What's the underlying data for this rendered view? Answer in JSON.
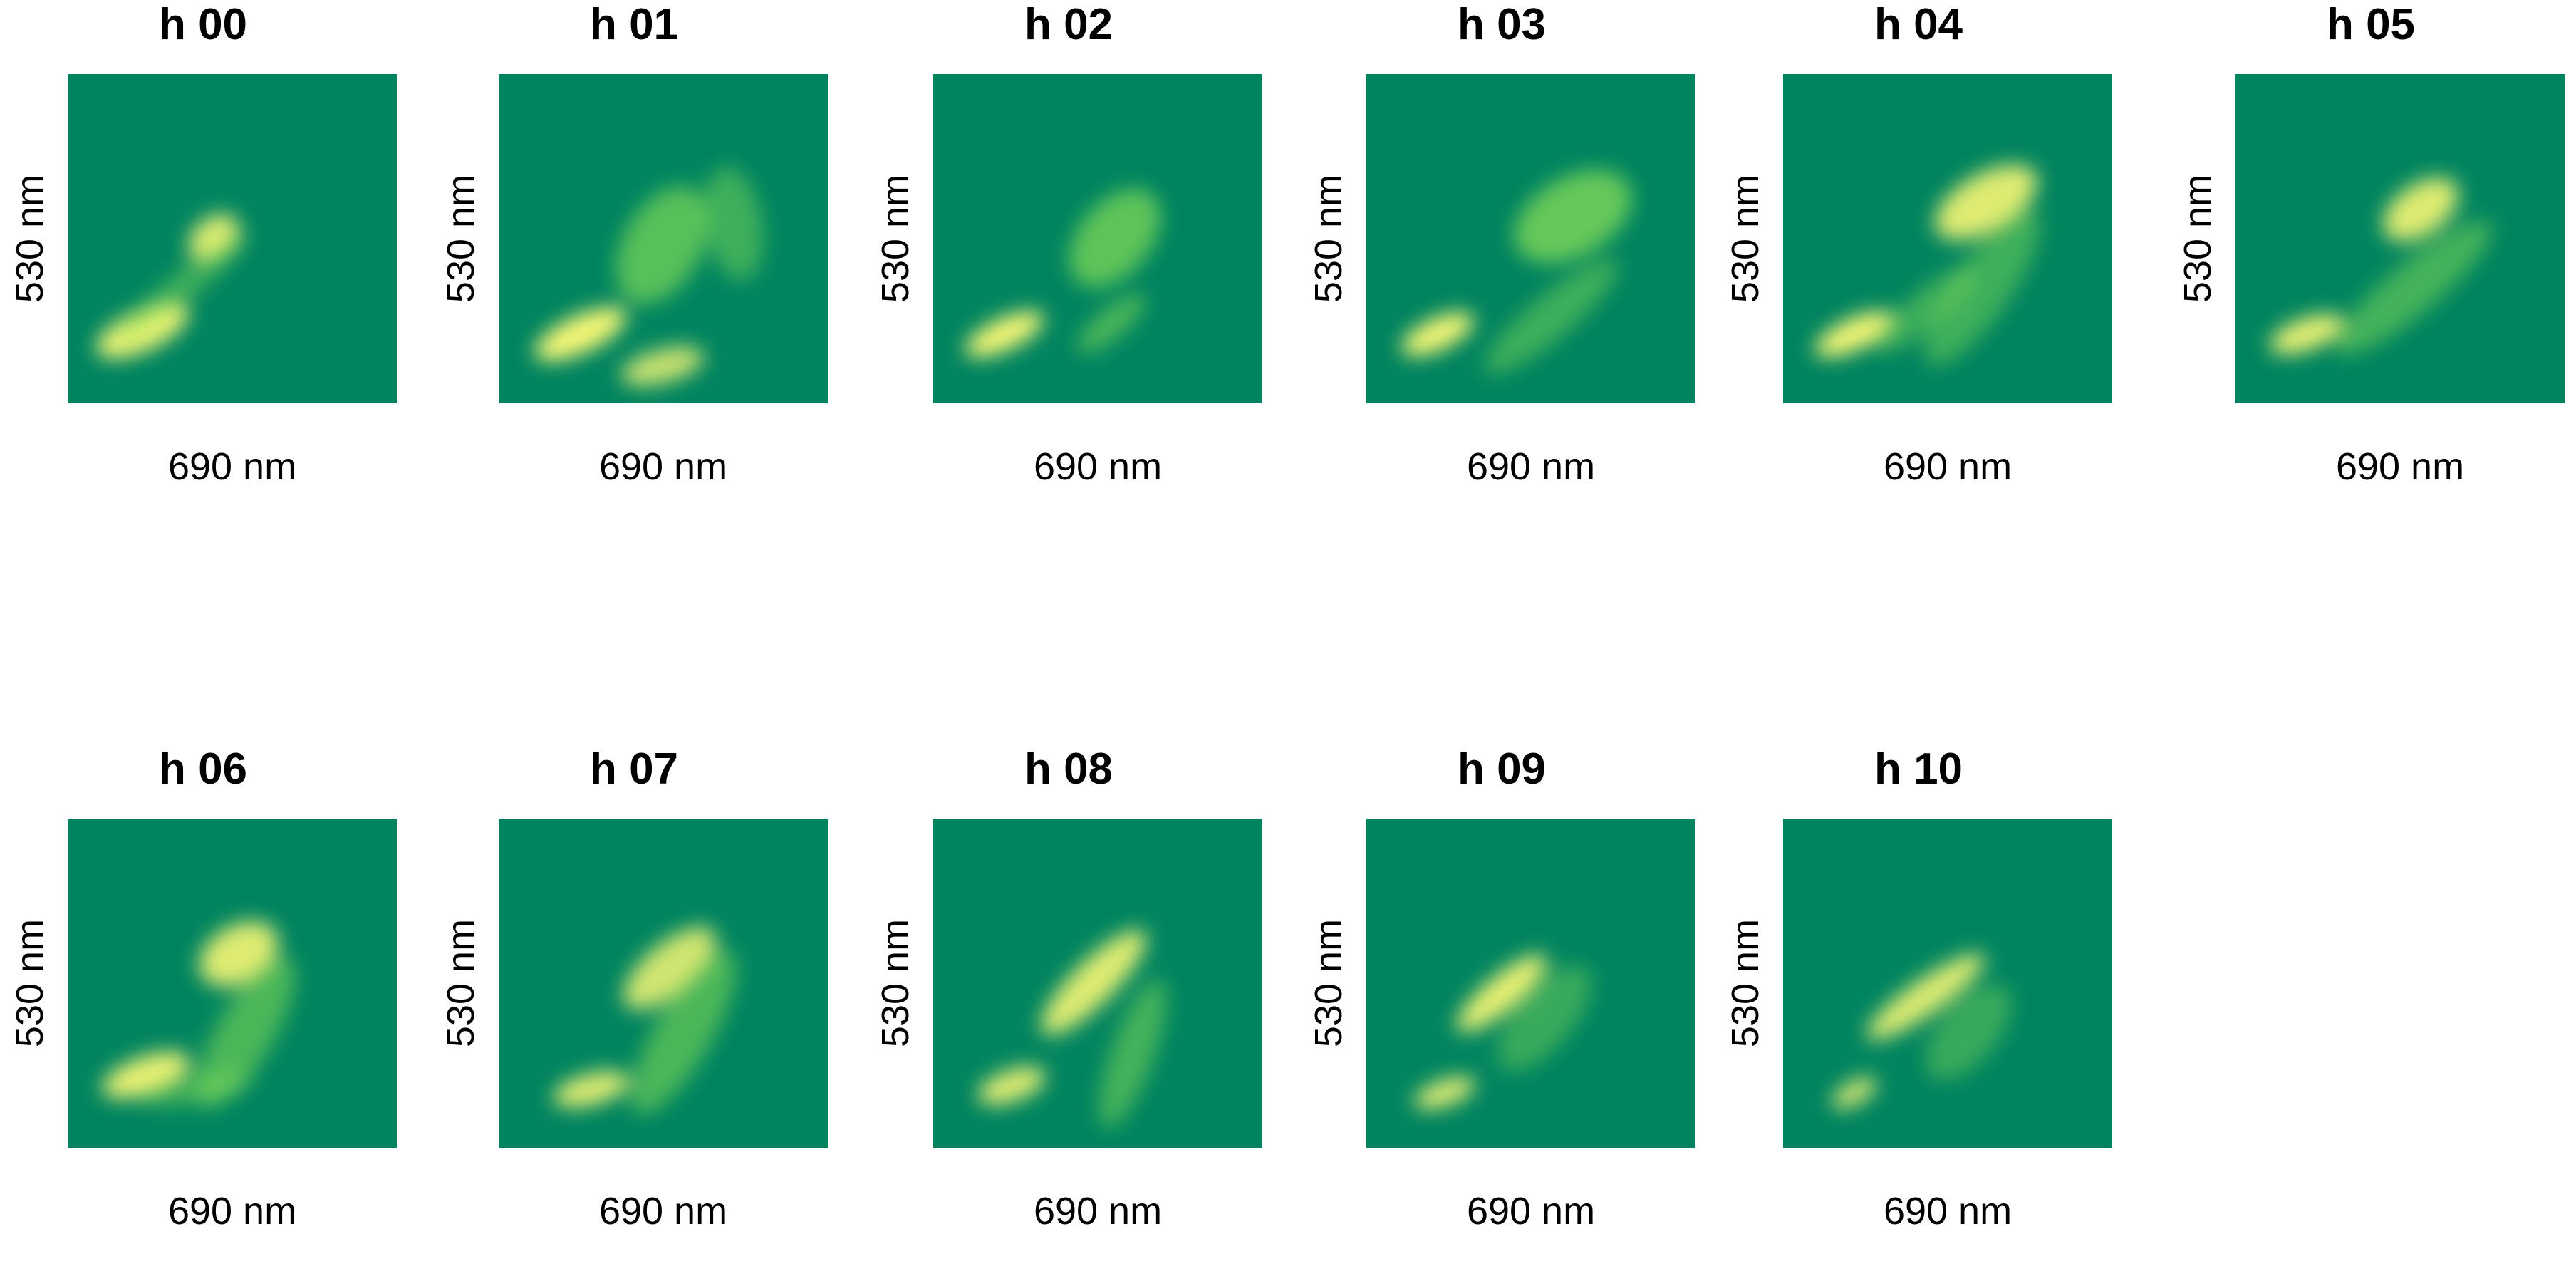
{
  "chart_data": {
    "type": "heatmap",
    "colormap": {
      "low": "#00845f",
      "mid": "#7ed957",
      "high": "#f7f774"
    },
    "panels": [
      {
        "title": "h 00",
        "xlabel": "690 nm",
        "ylabel": "530 nm"
      },
      {
        "title": "h 01",
        "xlabel": "690 nm",
        "ylabel": "530 nm"
      },
      {
        "title": "h 02",
        "xlabel": "690 nm",
        "ylabel": "530 nm"
      },
      {
        "title": "h 03",
        "xlabel": "690 nm",
        "ylabel": "530 nm"
      },
      {
        "title": "h 04",
        "xlabel": "690 nm",
        "ylabel": "530 nm"
      },
      {
        "title": "h 05",
        "xlabel": "690 nm",
        "ylabel": "530 nm"
      },
      {
        "title": "h 06",
        "xlabel": "690 nm",
        "ylabel": "530 nm"
      },
      {
        "title": "h 07",
        "xlabel": "690 nm",
        "ylabel": "530 nm"
      },
      {
        "title": "h 08",
        "xlabel": "690 nm",
        "ylabel": "530 nm"
      },
      {
        "title": "h 09",
        "xlabel": "690 nm",
        "ylabel": "530 nm"
      },
      {
        "title": "h 10",
        "xlabel": "690 nm",
        "ylabel": "530 nm"
      }
    ]
  }
}
